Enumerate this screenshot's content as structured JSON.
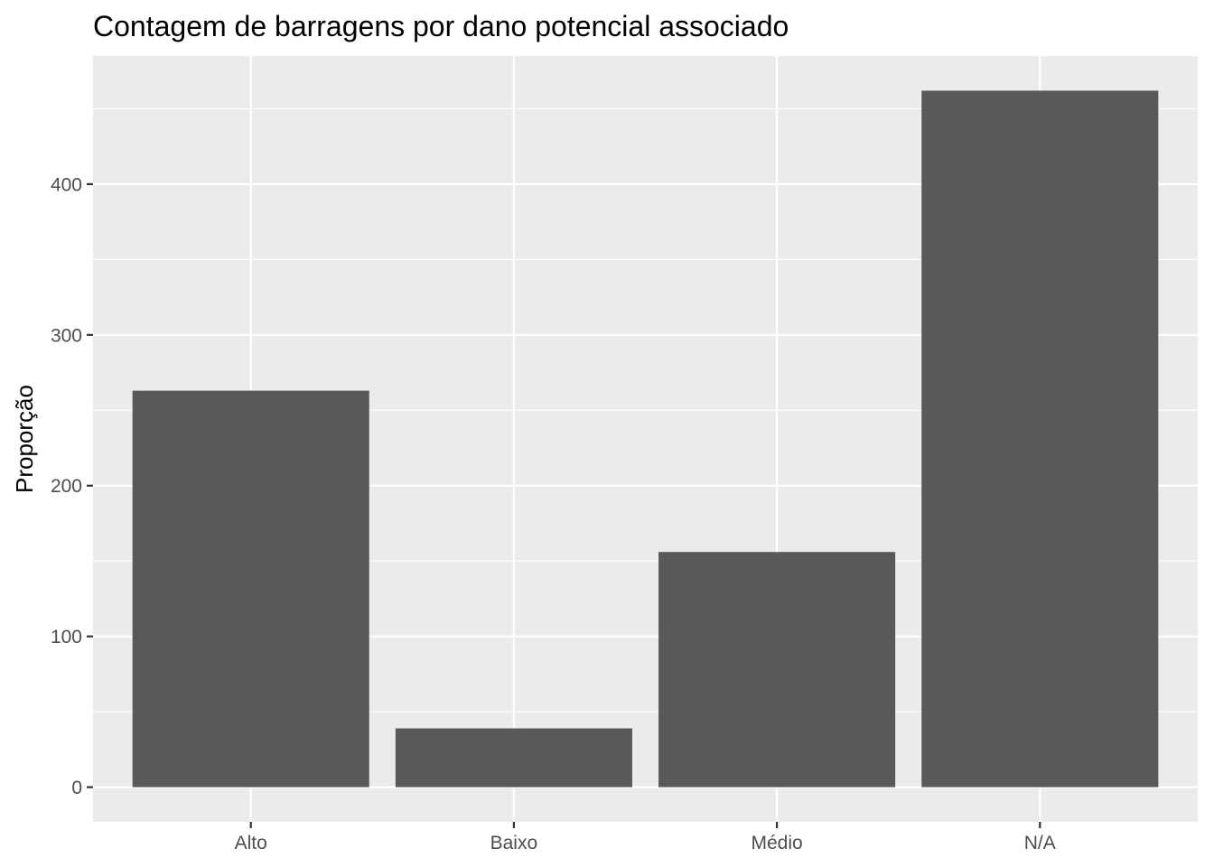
{
  "chart_data": {
    "type": "bar",
    "title": "Contagem de barragens por dano potencial associado",
    "xlabel": "",
    "ylabel": "Proporção",
    "categories": [
      "Alto",
      "Baixo",
      "Médio",
      "N/A"
    ],
    "values": [
      263,
      39,
      156,
      462
    ],
    "ylim": [
      -23,
      485
    ],
    "yticks": [
      0,
      100,
      200,
      300,
      400
    ],
    "grid": true,
    "legend": "none",
    "colors": {
      "bar": "#595959",
      "panel": "#ebebeb",
      "grid": "#ffffff",
      "tick": "#333333"
    }
  }
}
